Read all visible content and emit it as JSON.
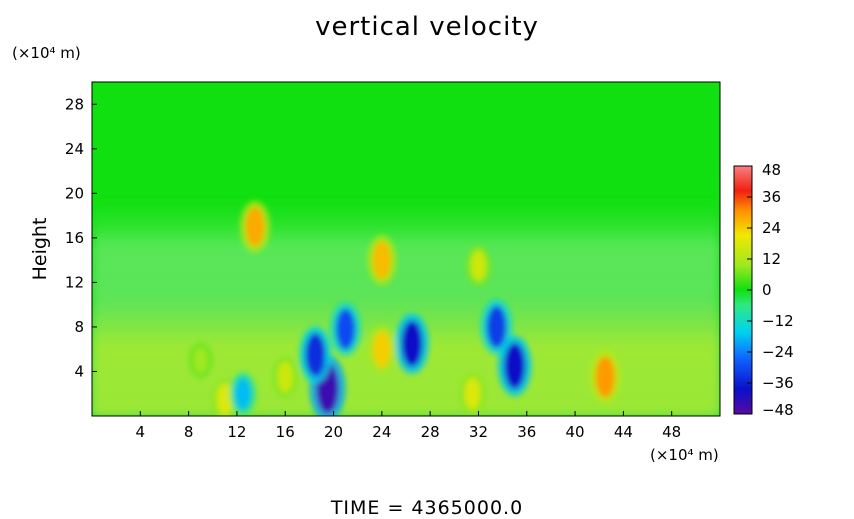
{
  "chart_data": {
    "type": "heatmap",
    "title": "vertical velocity",
    "ylabel": "Height",
    "xunit": "(×10⁴ m)",
    "yunit": "(×10⁴ m)",
    "footer": "TIME  =  4365000.0",
    "xlim": [
      0,
      52
    ],
    "ylim": [
      0,
      30
    ],
    "xticks": [
      4,
      8,
      12,
      16,
      20,
      24,
      28,
      32,
      36,
      40,
      44,
      48
    ],
    "yticks": [
      4,
      8,
      12,
      16,
      20,
      24,
      28
    ],
    "colorbar": {
      "range": [
        -48,
        48
      ],
      "ticks": [
        48,
        36,
        24,
        12,
        0,
        -12,
        -24,
        -36,
        -48
      ],
      "labels": [
        "48",
        "36",
        "24",
        "12",
        "0",
        "−12",
        "−24",
        "−36",
        "−48"
      ]
    },
    "features": [
      {
        "x": 19.5,
        "y": 2.5,
        "value": -44
      },
      {
        "x": 18.5,
        "y": 5.5,
        "value": -34
      },
      {
        "x": 21.0,
        "y": 7.8,
        "value": -30
      },
      {
        "x": 26.5,
        "y": 6.5,
        "value": -38
      },
      {
        "x": 33.5,
        "y": 8.0,
        "value": -32
      },
      {
        "x": 35.0,
        "y": 4.5,
        "value": -38
      },
      {
        "x": 24.0,
        "y": 6.0,
        "value": 24
      },
      {
        "x": 24.0,
        "y": 14.0,
        "value": 26
      },
      {
        "x": 13.5,
        "y": 17.0,
        "value": 28
      },
      {
        "x": 42.5,
        "y": 3.5,
        "value": 30
      },
      {
        "x": 11.0,
        "y": 1.5,
        "value": 18
      },
      {
        "x": 16.0,
        "y": 3.5,
        "value": 16
      },
      {
        "x": 31.5,
        "y": 2.0,
        "value": 18
      },
      {
        "x": 32.0,
        "y": 13.5,
        "value": 16
      },
      {
        "x": 9.0,
        "y": 5.0,
        "value": 10
      },
      {
        "x": 12.5,
        "y": 2.0,
        "value": -18
      }
    ]
  }
}
